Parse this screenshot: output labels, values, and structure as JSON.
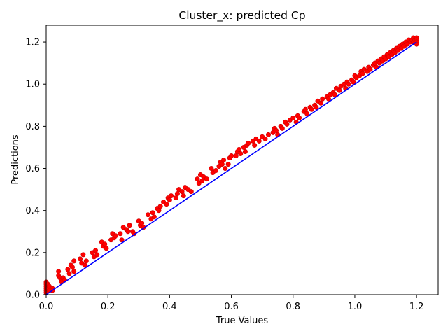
{
  "chart_data": {
    "type": "scatter",
    "title": "Cluster_x: predicted Cp",
    "xlabel": "True Values",
    "ylabel": "Predictions",
    "xlim": [
      0,
      1.27
    ],
    "ylim": [
      0,
      1.28
    ],
    "xticks": [
      0,
      0.2,
      0.4,
      0.6,
      0.8,
      1.0,
      1.2
    ],
    "yticks": [
      0,
      0.2,
      0.4,
      0.6,
      0.8,
      1.0,
      1.2
    ],
    "xtick_labels": [
      "0.0",
      "0.2",
      "0.4",
      "0.6",
      "0.8",
      "1.0",
      "1.2"
    ],
    "ytick_labels": [
      "0.0",
      "0.2",
      "0.4",
      "0.6",
      "0.8",
      "1.0",
      "1.2"
    ],
    "grid": false,
    "legend": "none",
    "colors": {
      "points": "#ff0000",
      "points_edge": "#cc0000",
      "reference_line": "#0000ff",
      "axes": "#000000"
    },
    "reference_line": {
      "x": [
        0,
        1.2
      ],
      "y": [
        0,
        1.2
      ]
    },
    "series": [
      {
        "values": [
          [
            0.0,
            0.06
          ],
          [
            0.0,
            0.05
          ],
          [
            0.0,
            0.04
          ],
          [
            0.0,
            0.03
          ],
          [
            0.0,
            0.02
          ],
          [
            0.0,
            0.01
          ],
          [
            0.005,
            0.05
          ],
          [
            0.005,
            0.03
          ],
          [
            0.01,
            0.04
          ],
          [
            0.01,
            0.02
          ],
          [
            0.02,
            0.03
          ],
          [
            0.02,
            0.02
          ],
          [
            0.04,
            0.11
          ],
          [
            0.04,
            0.09
          ],
          [
            0.045,
            0.08
          ],
          [
            0.05,
            0.07
          ],
          [
            0.05,
            0.06
          ],
          [
            0.055,
            0.08
          ],
          [
            0.06,
            0.07
          ],
          [
            0.07,
            0.12
          ],
          [
            0.075,
            0.1
          ],
          [
            0.08,
            0.14
          ],
          [
            0.085,
            0.13
          ],
          [
            0.09,
            0.16
          ],
          [
            0.09,
            0.11
          ],
          [
            0.11,
            0.17
          ],
          [
            0.115,
            0.15
          ],
          [
            0.12,
            0.19
          ],
          [
            0.125,
            0.14
          ],
          [
            0.13,
            0.16
          ],
          [
            0.15,
            0.2
          ],
          [
            0.155,
            0.18
          ],
          [
            0.16,
            0.21
          ],
          [
            0.165,
            0.19
          ],
          [
            0.18,
            0.25
          ],
          [
            0.185,
            0.23
          ],
          [
            0.19,
            0.24
          ],
          [
            0.195,
            0.22
          ],
          [
            0.21,
            0.26
          ],
          [
            0.215,
            0.29
          ],
          [
            0.22,
            0.27
          ],
          [
            0.225,
            0.28
          ],
          [
            0.24,
            0.29
          ],
          [
            0.245,
            0.26
          ],
          [
            0.25,
            0.32
          ],
          [
            0.26,
            0.31
          ],
          [
            0.265,
            0.3
          ],
          [
            0.27,
            0.33
          ],
          [
            0.28,
            0.3
          ],
          [
            0.285,
            0.29
          ],
          [
            0.3,
            0.35
          ],
          [
            0.305,
            0.33
          ],
          [
            0.31,
            0.34
          ],
          [
            0.315,
            0.32
          ],
          [
            0.33,
            0.38
          ],
          [
            0.34,
            0.36
          ],
          [
            0.345,
            0.39
          ],
          [
            0.35,
            0.37
          ],
          [
            0.36,
            0.41
          ],
          [
            0.365,
            0.4
          ],
          [
            0.37,
            0.42
          ],
          [
            0.38,
            0.44
          ],
          [
            0.39,
            0.43
          ],
          [
            0.395,
            0.46
          ],
          [
            0.4,
            0.45
          ],
          [
            0.405,
            0.47
          ],
          [
            0.42,
            0.46
          ],
          [
            0.425,
            0.48
          ],
          [
            0.43,
            0.5
          ],
          [
            0.44,
            0.49
          ],
          [
            0.445,
            0.47
          ],
          [
            0.45,
            0.51
          ],
          [
            0.46,
            0.5
          ],
          [
            0.47,
            0.49
          ],
          [
            0.49,
            0.55
          ],
          [
            0.495,
            0.53
          ],
          [
            0.5,
            0.57
          ],
          [
            0.505,
            0.54
          ],
          [
            0.51,
            0.56
          ],
          [
            0.52,
            0.55
          ],
          [
            0.535,
            0.6
          ],
          [
            0.54,
            0.58
          ],
          [
            0.55,
            0.59
          ],
          [
            0.56,
            0.61
          ],
          [
            0.565,
            0.63
          ],
          [
            0.57,
            0.62
          ],
          [
            0.575,
            0.64
          ],
          [
            0.58,
            0.6
          ],
          [
            0.59,
            0.62
          ],
          [
            0.595,
            0.65
          ],
          [
            0.6,
            0.66
          ],
          [
            0.615,
            0.66
          ],
          [
            0.62,
            0.68
          ],
          [
            0.625,
            0.69
          ],
          [
            0.63,
            0.67
          ],
          [
            0.64,
            0.7
          ],
          [
            0.645,
            0.68
          ],
          [
            0.65,
            0.71
          ],
          [
            0.655,
            0.72
          ],
          [
            0.67,
            0.73
          ],
          [
            0.675,
            0.71
          ],
          [
            0.68,
            0.74
          ],
          [
            0.69,
            0.73
          ],
          [
            0.7,
            0.75
          ],
          [
            0.71,
            0.74
          ],
          [
            0.72,
            0.76
          ],
          [
            0.735,
            0.77
          ],
          [
            0.74,
            0.79
          ],
          [
            0.745,
            0.78
          ],
          [
            0.75,
            0.76
          ],
          [
            0.76,
            0.8
          ],
          [
            0.765,
            0.79
          ],
          [
            0.775,
            0.82
          ],
          [
            0.78,
            0.81
          ],
          [
            0.79,
            0.83
          ],
          [
            0.8,
            0.84
          ],
          [
            0.81,
            0.82
          ],
          [
            0.815,
            0.85
          ],
          [
            0.82,
            0.84
          ],
          [
            0.835,
            0.87
          ],
          [
            0.84,
            0.88
          ],
          [
            0.845,
            0.86
          ],
          [
            0.855,
            0.89
          ],
          [
            0.86,
            0.88
          ],
          [
            0.87,
            0.9
          ],
          [
            0.875,
            0.89
          ],
          [
            0.88,
            0.92
          ],
          [
            0.89,
            0.91
          ],
          [
            0.895,
            0.93
          ],
          [
            0.91,
            0.94
          ],
          [
            0.915,
            0.93
          ],
          [
            0.92,
            0.95
          ],
          [
            0.93,
            0.96
          ],
          [
            0.935,
            0.95
          ],
          [
            0.94,
            0.98
          ],
          [
            0.95,
            0.97
          ],
          [
            0.955,
            0.99
          ],
          [
            0.965,
            1.0
          ],
          [
            0.97,
            0.98
          ],
          [
            0.975,
            1.01
          ],
          [
            0.98,
            1.0
          ],
          [
            0.99,
            1.02
          ],
          [
            0.995,
            1.01
          ],
          [
            1.0,
            1.04
          ],
          [
            1.005,
            1.03
          ],
          [
            1.015,
            1.04
          ],
          [
            1.02,
            1.06
          ],
          [
            1.025,
            1.05
          ],
          [
            1.03,
            1.07
          ],
          [
            1.04,
            1.06
          ],
          [
            1.045,
            1.08
          ],
          [
            1.05,
            1.07
          ],
          [
            1.06,
            1.09
          ],
          [
            1.065,
            1.1
          ],
          [
            1.07,
            1.08
          ],
          [
            1.075,
            1.11
          ],
          [
            1.08,
            1.1
          ],
          [
            1.085,
            1.12
          ],
          [
            1.09,
            1.11
          ],
          [
            1.095,
            1.13
          ],
          [
            1.1,
            1.12
          ],
          [
            1.105,
            1.14
          ],
          [
            1.11,
            1.13
          ],
          [
            1.115,
            1.15
          ],
          [
            1.12,
            1.14
          ],
          [
            1.125,
            1.16
          ],
          [
            1.13,
            1.15
          ],
          [
            1.135,
            1.17
          ],
          [
            1.14,
            1.16
          ],
          [
            1.145,
            1.18
          ],
          [
            1.15,
            1.17
          ],
          [
            1.155,
            1.19
          ],
          [
            1.16,
            1.18
          ],
          [
            1.165,
            1.2
          ],
          [
            1.17,
            1.19
          ],
          [
            1.175,
            1.21
          ],
          [
            1.18,
            1.2
          ],
          [
            1.185,
            1.21
          ],
          [
            1.19,
            1.2
          ],
          [
            1.19,
            1.22
          ],
          [
            1.195,
            1.21
          ],
          [
            1.2,
            1.22
          ],
          [
            1.2,
            1.21
          ],
          [
            1.2,
            1.2
          ],
          [
            1.2,
            1.19
          ]
        ]
      }
    ]
  }
}
